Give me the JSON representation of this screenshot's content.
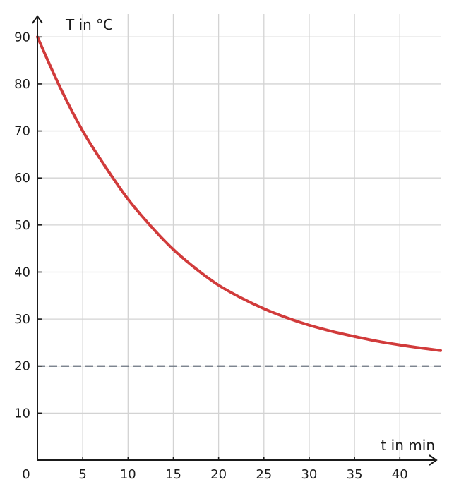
{
  "chart_data": {
    "type": "line",
    "title": "",
    "xlabel": "t in min",
    "ylabel": "T in °C",
    "xlim": [
      0,
      44.5
    ],
    "ylim": [
      0,
      95
    ],
    "x_ticks": [
      5,
      10,
      15,
      20,
      25,
      30,
      35,
      40
    ],
    "y_ticks": [
      10,
      20,
      30,
      40,
      50,
      60,
      70,
      80,
      90
    ],
    "origin_label": "0",
    "grid": true,
    "legend": "none",
    "series": [
      {
        "color": "#d13b3b",
        "style": "solid",
        "x": [
          0,
          2.5,
          5,
          7.5,
          10,
          12.5,
          15,
          17.5,
          20,
          22.5,
          25,
          27.5,
          30,
          32.5,
          35,
          37.5,
          40,
          42.5,
          44.5
        ],
        "y": [
          90,
          79.3,
          70,
          62.4,
          55.5,
          49.8,
          44.8,
          40.7,
          37.2,
          34.5,
          32.2,
          30.3,
          28.7,
          27.4,
          26.3,
          25.3,
          24.5,
          23.8,
          23.3
        ]
      },
      {
        "color": "#6b7480",
        "style": "dashed",
        "x": [
          0,
          44.5
        ],
        "y": [
          20,
          20
        ]
      }
    ]
  }
}
